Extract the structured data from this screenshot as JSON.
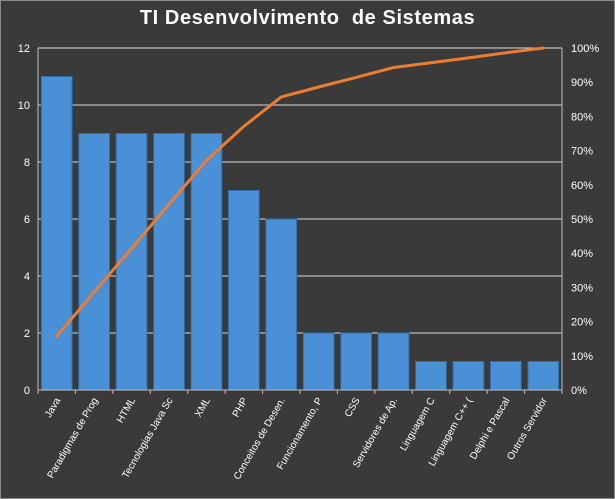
{
  "chart_data": {
    "type": "bar",
    "title": "TI Desenvolvimento  de Sistemas",
    "categories": [
      "Java",
      "Paradigmas de Prog",
      "HTML",
      "Tecnologias Java Sc",
      "XML",
      "PHP",
      "Conceitos de Desen.",
      "Funcionamento, P",
      "CSS",
      "Servidores de Ap.",
      "Linguagem C",
      "Linguagem C++ (",
      "Delphi e Pascal",
      "Outros Servidor"
    ],
    "series": [
      {
        "type": "bar",
        "axis": "left",
        "values": [
          11,
          9,
          9,
          9,
          9,
          7,
          6,
          2,
          2,
          2,
          1,
          1,
          1,
          1
        ]
      },
      {
        "type": "line",
        "axis": "right",
        "values": [
          15.7,
          28.6,
          41.4,
          54.3,
          67.1,
          77.1,
          85.7,
          88.6,
          91.4,
          94.3,
          95.7,
          97.1,
          98.6,
          100.0
        ]
      }
    ],
    "ylim": [
      0,
      12
    ],
    "yticks": [
      "0",
      "2",
      "4",
      "6",
      "8",
      "10",
      "12"
    ],
    "y2lim": [
      0,
      100
    ],
    "y2ticks": [
      "0%",
      "10%",
      "20%",
      "30%",
      "40%",
      "50%",
      "60%",
      "70%",
      "80%",
      "90%",
      "100%"
    ],
    "grid": true,
    "legend": "none",
    "colors": {
      "background": "#3a3a3a",
      "bar": "#4a90d6",
      "bar_edge": "#2f6fb0",
      "line": "#ed7d31",
      "grid": "#d8d8d8",
      "axis": "#bfbfbf",
      "text": "#ffffff"
    }
  }
}
